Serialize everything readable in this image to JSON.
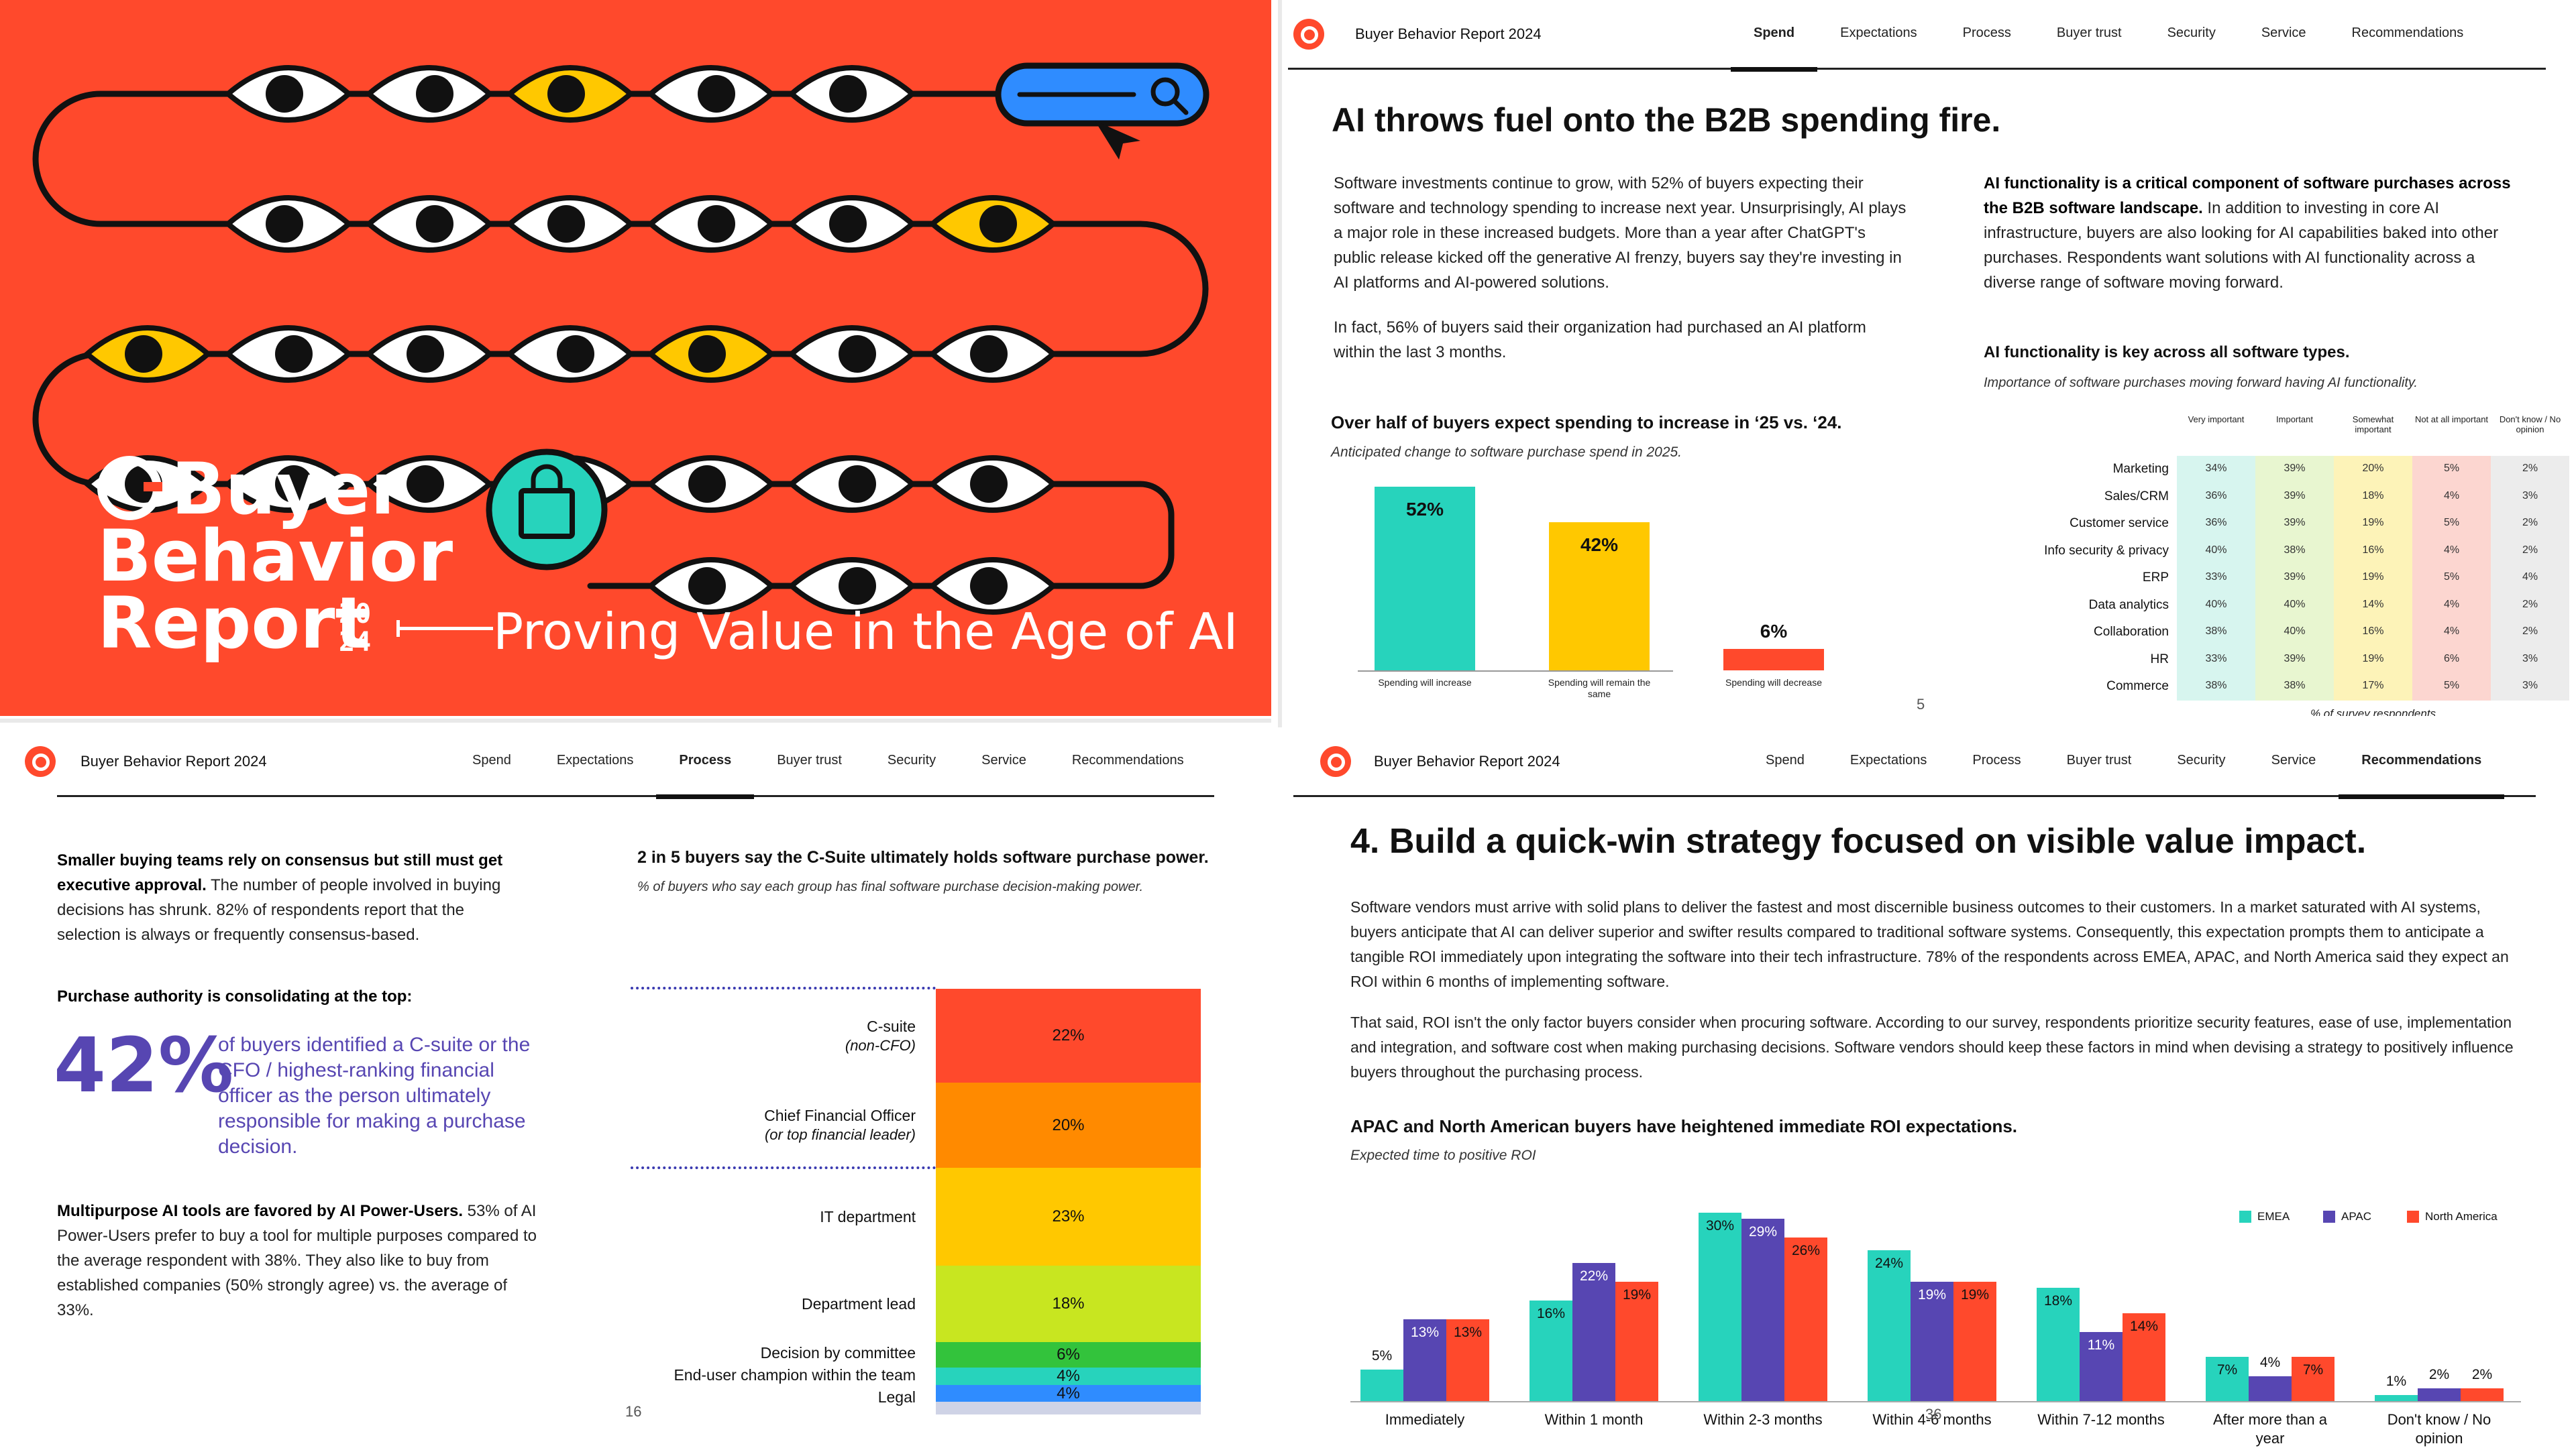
{
  "cover": {
    "brand": "Buyer",
    "title_line2": "Behavior",
    "title_line3": "Report",
    "year_top": "20",
    "year_bottom": "24",
    "subtitle": "Proving Value in the Age of AI"
  },
  "nav": {
    "brand": "Buyer Behavior Report 2024",
    "tabs": [
      "Spend",
      "Expectations",
      "Process",
      "Buyer trust",
      "Security",
      "Service",
      "Recommendations"
    ]
  },
  "spend_page": {
    "active_tab": "Spend",
    "title": "AI throws fuel onto the B2B spending fire.",
    "para1": "Software investments continue to grow, with 52% of buyers expecting their software and technology spending to increase next year. Unsurprisingly, AI plays a major role in these increased budgets. More than a year after ChatGPT's public release kicked off the generative AI frenzy, buyers say they're investing in AI platforms and AI-powered solutions.",
    "para2": "In fact, 56% of buyers said their organization had purchased an AI platform within the last 3 months.",
    "right_bold": "AI functionality is a critical component of software purchases across the B2B software landscape.",
    "right_rest": " In addition to investing in core AI infrastructure, buyers are also looking for AI capabilities baked into other purchases. Respondents want solutions with AI functionality across a diverse range of software moving forward.",
    "chart_title": "Over half of buyers expect spending to increase in ‘25 vs. ‘24.",
    "chart_sub": "Anticipated change to software purchase spend in 2025.",
    "heat_title": "AI functionality is key across all software types.",
    "heat_sub": "Importance of software purchases moving forward having AI functionality.",
    "heat_footer": "% of survey respondents",
    "page_number": "5"
  },
  "process_page": {
    "active_tab": "Process",
    "p1_bold": "Smaller buying teams rely on consensus but still must get executive approval.",
    "p1_rest": " The number of people involved in buying decisions has shrunk. 82% of respondents report that the selection is always or frequently consensus-based.",
    "p2_bold": "Purchase authority is consolidating at the top:",
    "big_stat": "42%",
    "big_text": "of buyers identified a C-suite or the CFO / highest-ranking financial officer as the person ultimately responsible for making a purchase decision.",
    "p3_bold": "Multipurpose AI tools are favored by AI Power-Users.",
    "p3_rest": " 53% of AI Power-Users prefer to buy a tool for multiple purposes compared to the average respondent with 38%. They also like to buy from established companies (50% strongly agree) vs. the average of 33%.",
    "chart_title": "2 in 5 buyers say the C-Suite ultimately holds software purchase power.",
    "chart_sub": "% of buyers who say each group has final software purchase decision-making power.",
    "page_number": "16"
  },
  "reco_page": {
    "active_tab": "Recommendations",
    "title": "4.  Build a quick-win strategy focused on visible value impact.",
    "para1": "Software vendors must arrive with solid plans to deliver the fastest and most discernible business outcomes to their customers. In a market saturated with AI systems, buyers anticipate that AI can deliver superior and swifter results compared to traditional software systems. Consequently, this expectation prompts them to anticipate a tangible ROI immediately upon integrating the software into their tech infrastructure. 78% of the respondents across EMEA, APAC, and North America said they expect an ROI within 6 months of implementing software.",
    "para2": "That said, ROI isn't the only factor buyers consider when procuring software. According to our survey, respondents prioritize security features, ease of use, implementation and integration, and software cost when making purchasing decisions. Software vendors should keep these factors in mind when devising a strategy to positively influence buyers throughout the purchasing process.",
    "chart_title": "APAC and North American buyers have heightened immediate ROI expectations.",
    "chart_sub": "Expected time to positive ROI",
    "page_number": "36"
  },
  "chart_data": [
    {
      "type": "bar",
      "title": "Over half of buyers expect spending to increase in ‘25 vs. ‘24.",
      "categories": [
        "Spending will increase",
        "Spending will remain the same",
        "Spending will decrease"
      ],
      "values": [
        52,
        42,
        6
      ],
      "labels": [
        "52%",
        "42%",
        "6%"
      ],
      "colors": [
        "#27d3bc",
        "#ffc800",
        "#ff492c"
      ],
      "ylim": [
        0,
        55
      ]
    },
    {
      "type": "heatmap",
      "title": "AI functionality is key across all software types.",
      "columns": [
        "Very important",
        "Important",
        "Somewhat important",
        "Not at all important",
        "Don't know / No opinion"
      ],
      "column_colors": [
        "#d7f5ef",
        "#e8f6d0",
        "#fdf3b8",
        "#fcd6d0",
        "#ececec"
      ],
      "rows": [
        "Marketing",
        "Sales/CRM",
        "Customer service",
        "Info security & privacy",
        "ERP",
        "Data analytics",
        "Collaboration",
        "HR",
        "Commerce"
      ],
      "values": [
        [
          "34%",
          "39%",
          "20%",
          "5%",
          "2%"
        ],
        [
          "36%",
          "39%",
          "18%",
          "4%",
          "3%"
        ],
        [
          "36%",
          "39%",
          "19%",
          "5%",
          "2%"
        ],
        [
          "40%",
          "38%",
          "16%",
          "4%",
          "2%"
        ],
        [
          "33%",
          "39%",
          "19%",
          "5%",
          "4%"
        ],
        [
          "40%",
          "40%",
          "14%",
          "4%",
          "2%"
        ],
        [
          "38%",
          "40%",
          "16%",
          "4%",
          "2%"
        ],
        [
          "33%",
          "39%",
          "19%",
          "6%",
          "3%"
        ],
        [
          "38%",
          "38%",
          "17%",
          "5%",
          "3%"
        ]
      ]
    },
    {
      "type": "bar",
      "title": "2 in 5 buyers say the C-Suite ultimately holds software purchase power.",
      "stacked": true,
      "categories": [
        "C-suite",
        "Chief Financial Officer",
        "IT department",
        "Department lead",
        "Decision by committee",
        "End-user champion within the team",
        "Legal"
      ],
      "category_notes": [
        "(non-CFO)",
        "(or top financial leader)",
        "",
        "",
        "",
        "",
        ""
      ],
      "values": [
        22,
        20,
        23,
        18,
        6,
        4,
        4
      ],
      "labels": [
        "22%",
        "20%",
        "23%",
        "18%",
        "6%",
        "4%",
        "4%"
      ],
      "colors": [
        "#ff492c",
        "#ff8a00",
        "#ffc800",
        "#c8e620",
        "#33c33c",
        "#27d3bc",
        "#2f8cff",
        "#cfd3e6"
      ]
    },
    {
      "type": "bar",
      "title": "APAC and North American buyers have heightened immediate ROI expectations.",
      "categories": [
        "Immediately",
        "Within 1 month",
        "Within 2-3 months",
        "Within 4-6 months",
        "Within 7-12 months",
        "After more than a year",
        "Don't know / No opinion"
      ],
      "series": [
        {
          "name": "EMEA",
          "color": "#27d3bc",
          "values": [
            5,
            16,
            30,
            24,
            18,
            7,
            1
          ]
        },
        {
          "name": "APAC",
          "color": "#5746b2",
          "values": [
            13,
            22,
            29,
            19,
            11,
            4,
            2
          ]
        },
        {
          "name": "North America",
          "color": "#ff492c",
          "values": [
            13,
            19,
            26,
            19,
            14,
            7,
            2
          ]
        }
      ],
      "ylim": [
        0,
        32
      ]
    }
  ]
}
